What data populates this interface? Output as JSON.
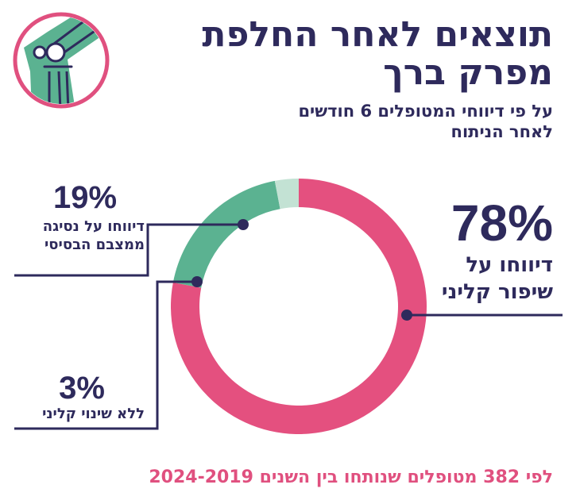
{
  "header": {
    "title_line1": "תוצאים לאחר החלפת",
    "title_line2": "מפרק ברך",
    "subtitle_line1": "על פי דיווחי המטופלים 6 חודשים",
    "subtitle_line2": "לאחר הניתוח"
  },
  "callouts": {
    "improvement": {
      "pct": "78%",
      "label_line1": "דיווחו על",
      "label_line2": "שיפור קליני"
    },
    "decline": {
      "pct": "19%",
      "label_line1": "דיווחו על נסיגה",
      "label_line2": "ממצבם הבסיסי"
    },
    "no_change": {
      "pct": "3%",
      "label_line1": "ללא שינוי קליני"
    }
  },
  "footer": {
    "text": "לפי 382 מטופלים שנותחו בין השנים 2024-2019"
  },
  "colors": {
    "improvement": "#e4507f",
    "decline": "#5bb291",
    "no_change": "#c3e2d4",
    "text": "#2e2a5c",
    "accent": "#e0507f"
  },
  "chart_data": {
    "type": "pie",
    "style": "donut",
    "categories": [
      "שיפור קליני",
      "נסיגה ממצבם הבסיסי",
      "ללא שינוי קליני"
    ],
    "values": [
      78,
      19,
      3
    ],
    "unit": "%"
  },
  "logo": {
    "icon": "knee-joint-icon"
  }
}
